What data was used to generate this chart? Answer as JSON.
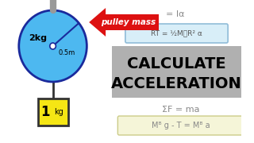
{
  "bg_color": "#ffffff",
  "pulley_color": "#4db8f0",
  "pulley_edge_color": "#1a2a9c",
  "axle_color": "#999999",
  "rope_color": "#333333",
  "box_color": "#f5e614",
  "box_edge_color": "#333333",
  "box_label": "1",
  "box_unit": "kg",
  "pulley_mass": "2kg",
  "pulley_radius_label": "0.5m",
  "arrow_color": "#dd1111",
  "arrow_text": "pulley mass",
  "arrow_text_color": "#ffffff",
  "eq1": "= Iα",
  "eq2_text": "RT = ½M₝R² α",
  "eq2_box_color": "#d8eef8",
  "eq2_box_edge": "#90bcd8",
  "main_title_line1": "CALCULATE",
  "main_title_line2": "ACCELERATION",
  "title_bg_color": "#b0b0b0",
  "eq3": "ΣF = ma",
  "eq4_box_color": "#f5f5d8",
  "eq4_box_edge": "#cccc88",
  "eq4": "Mᴮ g - T = Mᴮ a",
  "eq_text_color": "#888888"
}
